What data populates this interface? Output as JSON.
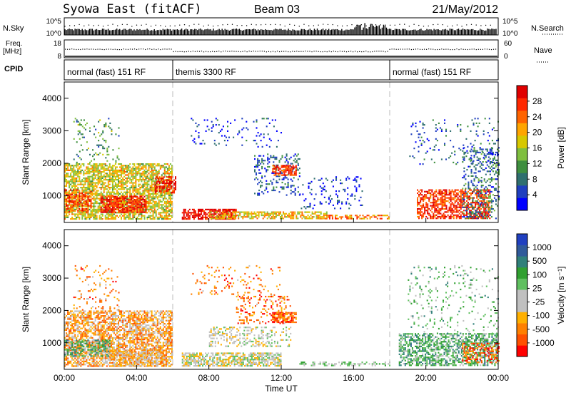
{
  "header": {
    "station": "Syowa East (fitACF)",
    "beam": "Beam 03",
    "date": "21/May/2012"
  },
  "strip_nsky": {
    "left_label": "N.Sky",
    "left_ticks": [
      "10^5",
      "10^0"
    ],
    "right_label": "N.Search",
    "right_ticks": [
      "10^5",
      "10^0"
    ]
  },
  "strip_freq": {
    "left_label_line1": "Freq.",
    "left_label_line2": "[MHz]",
    "left_ticks": [
      "18",
      "8"
    ],
    "right_label": "Nave",
    "right_ticks": [
      "60",
      "0"
    ]
  },
  "strip_cpid": {
    "label": "CPID",
    "modes": [
      {
        "name": "normal (fast) 151 RF",
        "start_hour": 0,
        "end_hour": 6
      },
      {
        "name": "themis 3300 RF",
        "start_hour": 6,
        "end_hour": 18
      },
      {
        "name": "normal (fast) 151 RF",
        "start_hour": 18,
        "end_hour": 24
      }
    ]
  },
  "colors": {
    "power_scale": [
      "#0000ff",
      "#1f3fbf",
      "#2f6f6f",
      "#3f8f3f",
      "#7fbf3f",
      "#d7c800",
      "#ffa500",
      "#ff6400",
      "#ff2800",
      "#e00000"
    ],
    "velocity_scale": [
      "#ff0000",
      "#ff5000",
      "#ff8000",
      "#ffb000",
      "#c0c0c0",
      "#c0c0c0",
      "#60c060",
      "#30a030",
      "#30807a",
      "#305a9a",
      "#2040c0"
    ]
  },
  "chart_data": [
    {
      "type": "heatmap",
      "panel": "power",
      "xlabel": "Time UT",
      "ylabel": "Slant Range [km]",
      "xlim": [
        0,
        24
      ],
      "ylim": [
        180,
        4500
      ],
      "x_ticks": [
        "00:00",
        "04:00",
        "08:00",
        "12:00",
        "16:00",
        "20:00",
        "00:00"
      ],
      "y_ticks": [
        "1000",
        "2000",
        "3000",
        "4000"
      ],
      "colorbar": {
        "label": "Power [dB]",
        "ticks": [
          "28",
          "24",
          "20",
          "16",
          "12",
          "8",
          "4"
        ],
        "range": [
          0,
          30
        ]
      },
      "regions": [
        {
          "t0": 0.0,
          "t1": 6.0,
          "r0": 300,
          "r1": 2000,
          "level": 0.55,
          "density": 0.75
        },
        {
          "t0": 2.0,
          "t1": 4.5,
          "r0": 500,
          "r1": 1000,
          "level": 0.9,
          "density": 0.8
        },
        {
          "t0": 0.0,
          "t1": 1.5,
          "r0": 500,
          "r1": 1200,
          "level": 0.8,
          "density": 0.6
        },
        {
          "t0": 5.0,
          "t1": 6.2,
          "r0": 1100,
          "r1": 1600,
          "level": 0.9,
          "density": 0.7
        },
        {
          "t0": 0.5,
          "t1": 3.0,
          "r0": 2000,
          "r1": 3400,
          "level": 0.35,
          "density": 0.12
        },
        {
          "t0": 6.5,
          "t1": 9.5,
          "r0": 300,
          "r1": 600,
          "level": 0.95,
          "density": 0.8
        },
        {
          "t0": 8.0,
          "t1": 14.5,
          "r0": 280,
          "r1": 520,
          "level": 0.6,
          "density": 0.7
        },
        {
          "t0": 10.5,
          "t1": 13.0,
          "r0": 1000,
          "r1": 2300,
          "level": 0.2,
          "density": 0.25
        },
        {
          "t0": 11.5,
          "t1": 12.8,
          "r0": 1650,
          "r1": 1950,
          "level": 0.85,
          "density": 0.8
        },
        {
          "t0": 7.0,
          "t1": 12.0,
          "r0": 2500,
          "r1": 3400,
          "level": 0.15,
          "density": 0.08
        },
        {
          "t0": 13.0,
          "t1": 16.5,
          "r0": 600,
          "r1": 1600,
          "level": 0.1,
          "density": 0.12
        },
        {
          "t0": 14.0,
          "t1": 18.0,
          "r0": 280,
          "r1": 420,
          "level": 0.7,
          "density": 0.5
        },
        {
          "t0": 19.5,
          "t1": 23.5,
          "r0": 300,
          "r1": 1200,
          "level": 0.85,
          "density": 0.7
        },
        {
          "t0": 22.0,
          "t1": 24.0,
          "r0": 300,
          "r1": 2500,
          "level": 0.25,
          "density": 0.3
        },
        {
          "t0": 19.0,
          "t1": 24.0,
          "r0": 2000,
          "r1": 3400,
          "level": 0.2,
          "density": 0.08
        }
      ]
    },
    {
      "type": "heatmap",
      "panel": "velocity",
      "xlabel": "Time UT",
      "ylabel": "Slant Range [km]",
      "xlim": [
        0,
        24
      ],
      "ylim": [
        180,
        4500
      ],
      "x_ticks": [
        "00:00",
        "04:00",
        "08:00",
        "12:00",
        "16:00",
        "20:00",
        "00:00"
      ],
      "y_ticks": [
        "1000",
        "2000",
        "3000",
        "4000"
      ],
      "colorbar": {
        "label": "Velocity [m s⁻¹]",
        "ticks": [
          "1000",
          "500",
          "100",
          "25",
          "-25",
          "-100",
          "-500",
          "-1000"
        ],
        "range": [
          -1000,
          1000
        ]
      },
      "regions": [
        {
          "t0": 0.0,
          "t1": 6.0,
          "r0": 300,
          "r1": 2000,
          "level": 0.3,
          "density": 0.75
        },
        {
          "t0": 0.0,
          "t1": 2.5,
          "r0": 600,
          "r1": 1100,
          "level": 0.65,
          "density": 0.55
        },
        {
          "t0": 2.5,
          "t1": 5.5,
          "r0": 300,
          "r1": 800,
          "level": 0.35,
          "density": 0.6
        },
        {
          "t0": 0.5,
          "t1": 3.0,
          "r0": 2000,
          "r1": 3400,
          "level": 0.25,
          "density": 0.12
        },
        {
          "t0": 6.5,
          "t1": 12.0,
          "r0": 280,
          "r1": 700,
          "level": 0.45,
          "density": 0.75
        },
        {
          "t0": 8.0,
          "t1": 12.5,
          "r0": 900,
          "r1": 1500,
          "level": 0.45,
          "density": 0.35
        },
        {
          "t0": 11.5,
          "t1": 12.8,
          "r0": 1650,
          "r1": 1950,
          "level": 0.15,
          "density": 0.85
        },
        {
          "t0": 9.5,
          "t1": 12.5,
          "r0": 1600,
          "r1": 2500,
          "level": 0.2,
          "density": 0.25
        },
        {
          "t0": 7.0,
          "t1": 12.0,
          "r0": 2500,
          "r1": 3400,
          "level": 0.2,
          "density": 0.1
        },
        {
          "t0": 13.0,
          "t1": 18.0,
          "r0": 280,
          "r1": 420,
          "level": 0.55,
          "density": 0.4
        },
        {
          "t0": 18.5,
          "t1": 24.0,
          "r0": 300,
          "r1": 1300,
          "level": 0.65,
          "density": 0.65
        },
        {
          "t0": 22.0,
          "t1": 24.0,
          "r0": 400,
          "r1": 1000,
          "level": 0.15,
          "density": 0.5
        },
        {
          "t0": 19.0,
          "t1": 24.0,
          "r0": 1300,
          "r1": 3400,
          "level": 0.6,
          "density": 0.1
        }
      ]
    }
  ]
}
